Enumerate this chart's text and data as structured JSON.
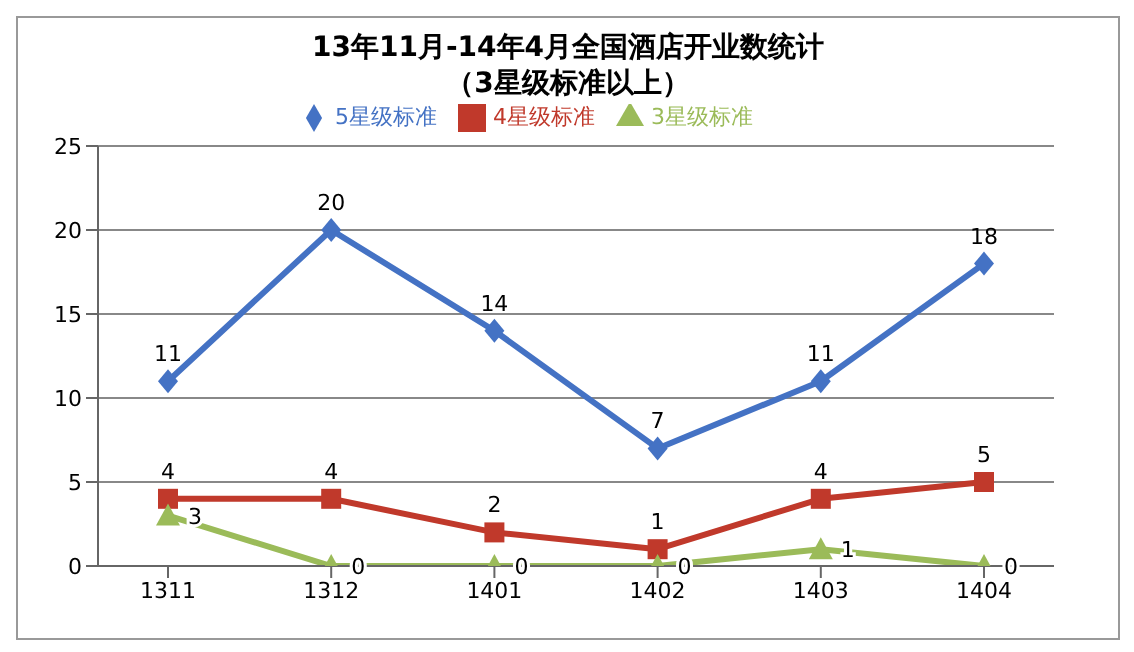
{
  "chart_data": {
    "type": "line",
    "title": "13年11月-14年4月全国酒店开业数统计",
    "subtitle": "（3星级标准以上）",
    "categories": [
      "1311",
      "1312",
      "1401",
      "1402",
      "1403",
      "1404"
    ],
    "series": [
      {
        "name": "5星级标准",
        "color": "#4472c4",
        "marker": "diamond",
        "values": [
          11,
          20,
          14,
          7,
          11,
          18
        ]
      },
      {
        "name": "4星级标准",
        "color": "#c0392b",
        "marker": "square",
        "values": [
          4,
          4,
          2,
          1,
          4,
          5
        ]
      },
      {
        "name": "3星级标准",
        "color": "#9bbb59",
        "marker": "triangle",
        "values": [
          3,
          0,
          0,
          0,
          1,
          0
        ]
      }
    ],
    "ylim": [
      0,
      25
    ],
    "yticks": [
      0,
      5,
      10,
      15,
      20,
      25
    ],
    "grid": "y",
    "legend": "top",
    "data_labels": true
  }
}
